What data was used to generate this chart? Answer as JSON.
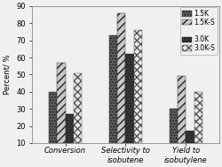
{
  "categories": [
    "Conversion",
    "Selectivity to\nisobutene",
    "Yield to\nisobutylene"
  ],
  "series": {
    "1.5K": [
      40,
      73,
      30
    ],
    "1.5K-S": [
      57,
      86,
      49
    ],
    "3.0K": [
      27,
      62,
      17
    ],
    "3.0K-S": [
      51,
      76,
      40
    ]
  },
  "ylim": [
    10,
    90
  ],
  "yticks": [
    10,
    20,
    30,
    40,
    50,
    60,
    70,
    80,
    90
  ],
  "ylabel": "Percent/ %",
  "background_color": "#f0f0f0",
  "axis_fontsize": 6,
  "legend_fontsize": 5.5,
  "styles": [
    {
      "facecolor": "#606060",
      "hatch": ".....",
      "edgecolor": "#222222"
    },
    {
      "facecolor": "#c8c8c8",
      "hatch": "////",
      "edgecolor": "#222222"
    },
    {
      "facecolor": "#383838",
      "hatch": ".....",
      "edgecolor": "#222222"
    },
    {
      "facecolor": "#e8e8e8",
      "hatch": "xxxx",
      "edgecolor": "#555555"
    }
  ],
  "legend_labels": [
    "1.5K",
    "1.5K-S",
    "3.0K",
    "3.0K-S"
  ],
  "group_width": 0.55,
  "bar_bottom": 10
}
